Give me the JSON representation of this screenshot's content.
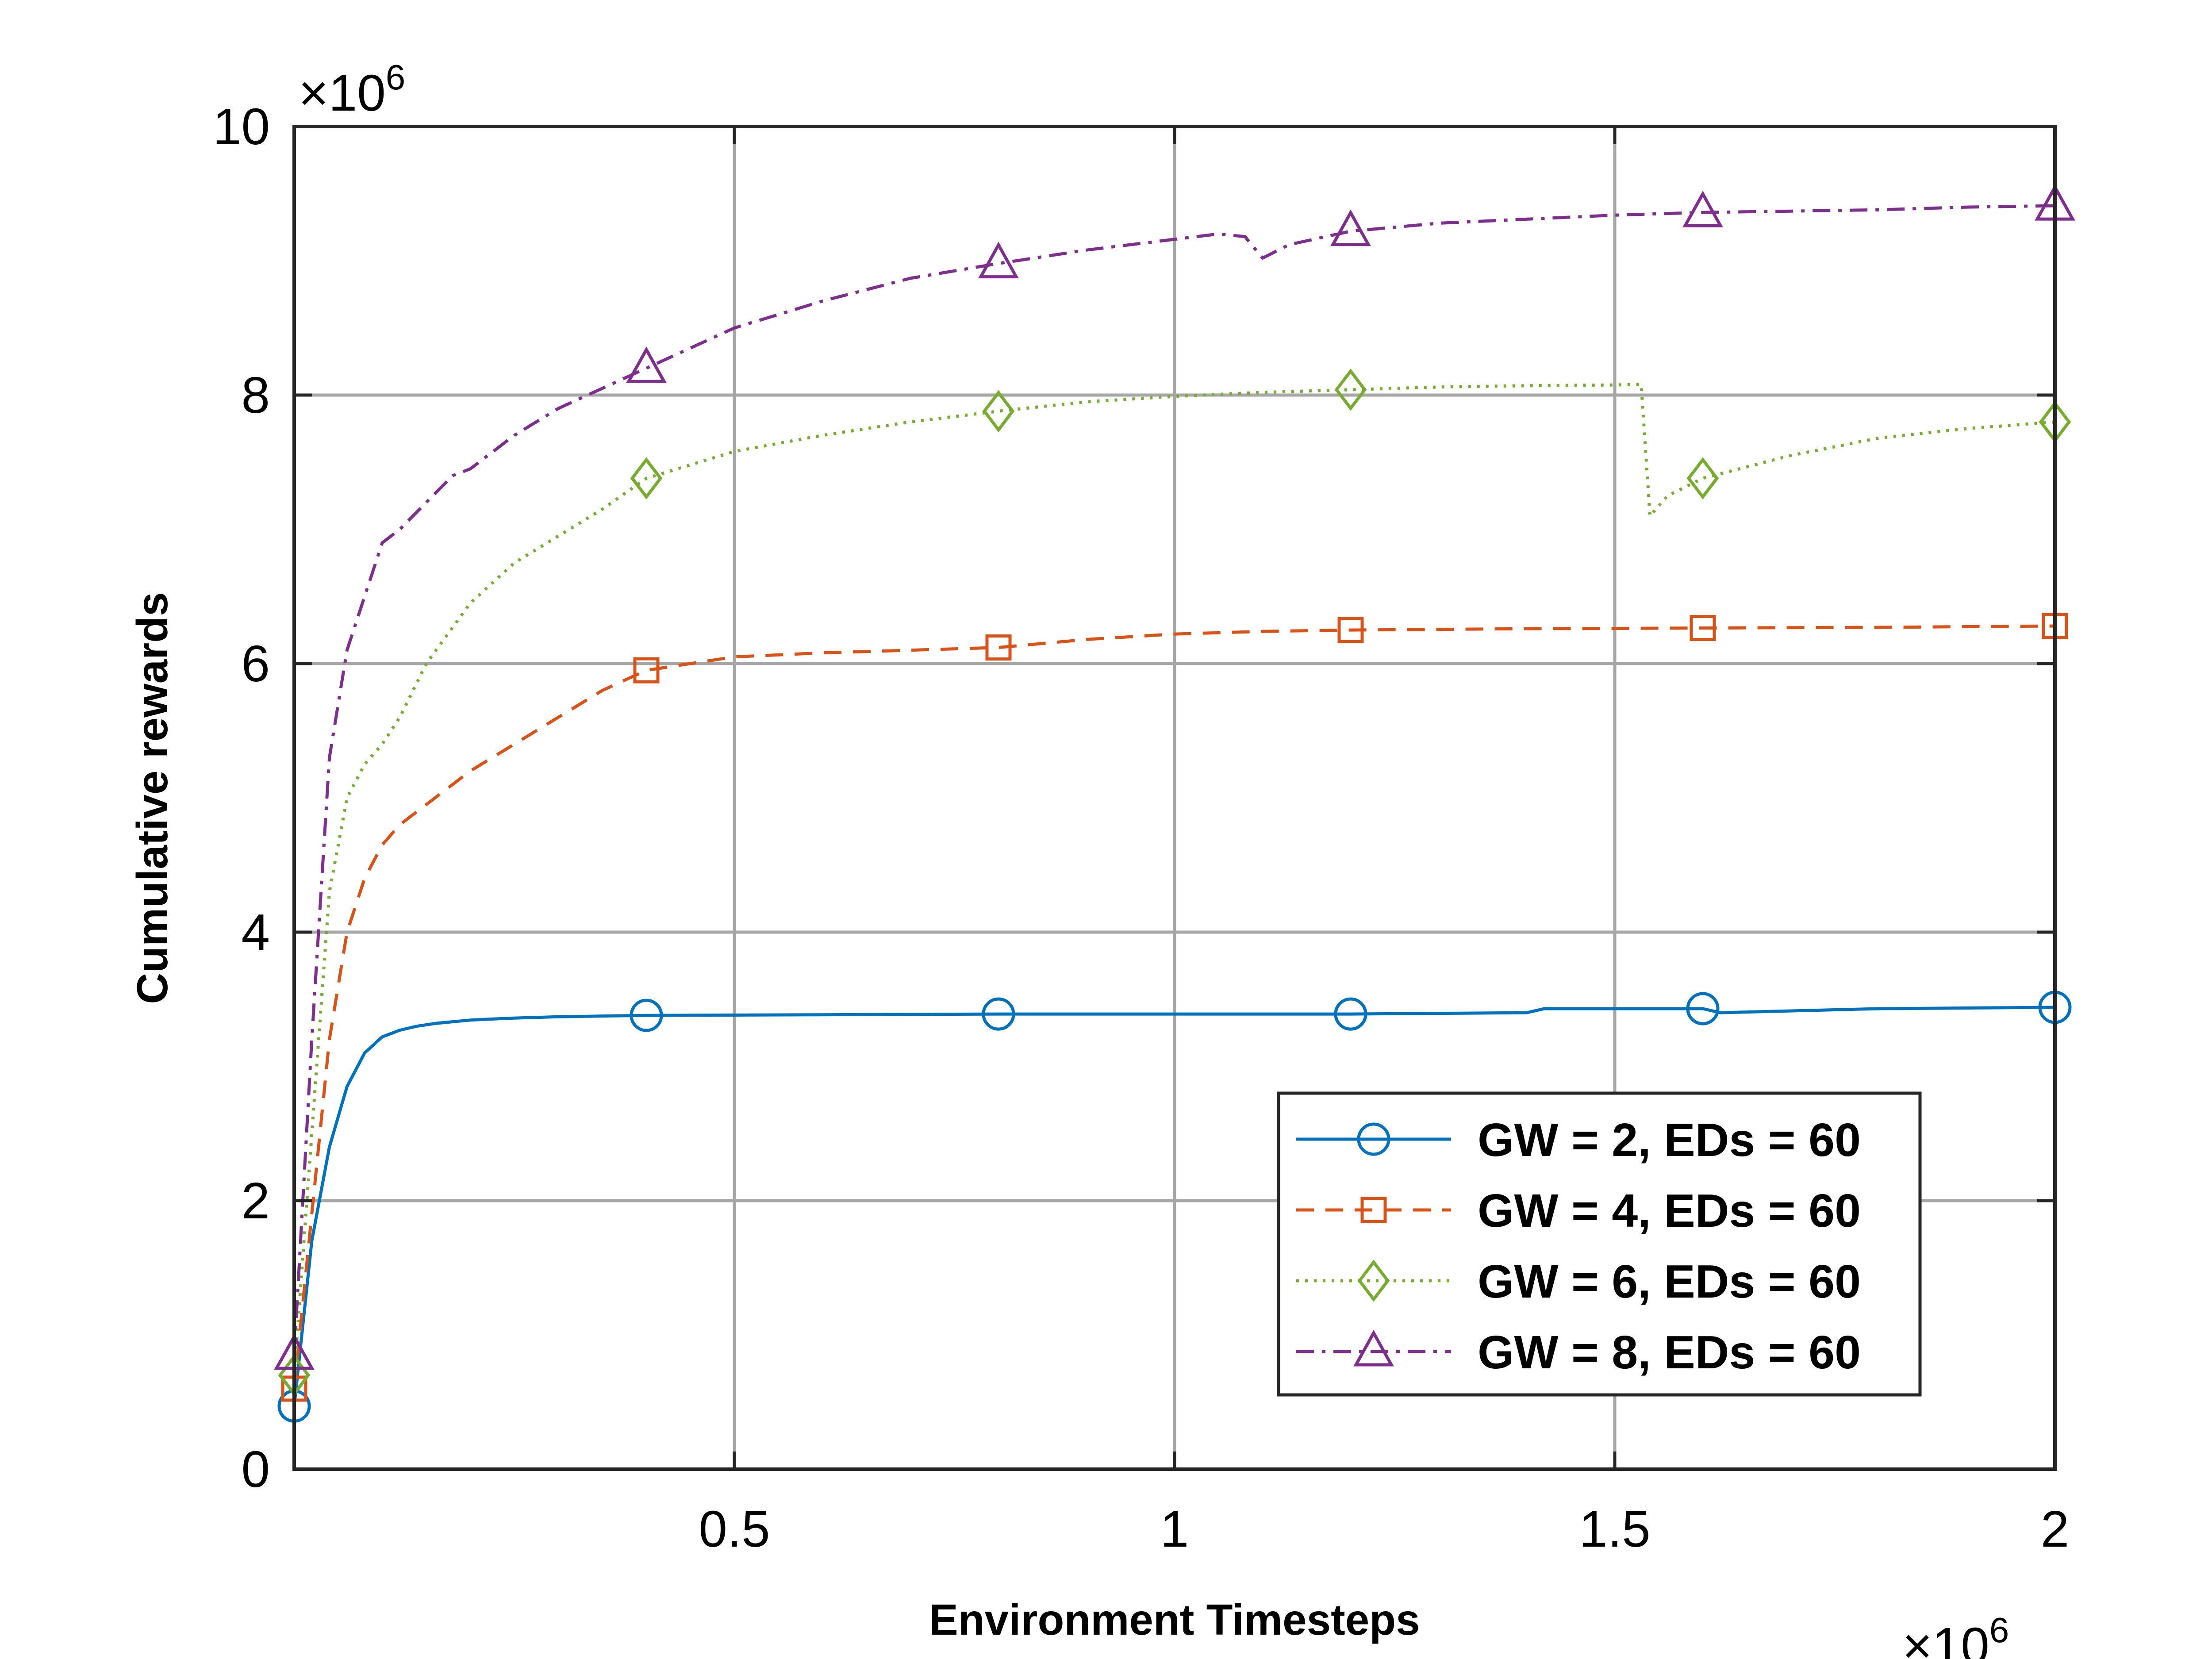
{
  "chart_data": {
    "type": "line",
    "title": "",
    "xlabel": "Environment Timesteps",
    "ylabel": "Cumulative rewards",
    "x_exponent_label": "×10^6",
    "y_exponent_label": "×10^6",
    "xlim": [
      0,
      2000000
    ],
    "ylim": [
      0,
      10000000
    ],
    "x_ticks": [
      500000,
      1000000,
      1500000,
      2000000
    ],
    "x_tick_labels": [
      "0.5",
      "1",
      "1.5",
      "2"
    ],
    "y_ticks": [
      0,
      2000000,
      4000000,
      6000000,
      8000000,
      10000000
    ],
    "y_tick_labels": [
      "0",
      "2",
      "4",
      "6",
      "8",
      "10"
    ],
    "grid": true,
    "legend_position": "bottom-right",
    "series": [
      {
        "name": "GW = 2, EDs = 60",
        "color": "#0072BD",
        "dash": "solid",
        "marker": "circle",
        "x": [
          0,
          20000,
          40000,
          60000,
          80000,
          100000,
          120000,
          140000,
          160000,
          200000,
          250000,
          300000,
          400000,
          600000,
          800000,
          1000000,
          1200000,
          1400000,
          1420000,
          1600000,
          1620000,
          1800000,
          2000000
        ],
        "y": [
          470000,
          1700000,
          2400000,
          2850000,
          3100000,
          3220000,
          3270000,
          3300000,
          3320000,
          3345000,
          3360000,
          3370000,
          3380000,
          3385000,
          3390000,
          3390000,
          3390000,
          3400000,
          3430000,
          3430000,
          3400000,
          3430000,
          3440000
        ]
      },
      {
        "name": "GW = 4, EDs = 60",
        "color": "#D95319",
        "dash": "dashed",
        "marker": "square",
        "x": [
          0,
          20000,
          40000,
          60000,
          80000,
          100000,
          120000,
          150000,
          200000,
          250000,
          300000,
          350000,
          400000,
          450000,
          500000,
          600000,
          700000,
          800000,
          900000,
          1000000,
          1100000,
          1200000,
          1300000,
          1400000,
          1500000,
          1600000,
          1700000,
          1800000,
          1900000,
          2000000
        ],
        "y": [
          600000,
          1900000,
          3200000,
          4000000,
          4400000,
          4650000,
          4800000,
          4950000,
          5200000,
          5400000,
          5600000,
          5800000,
          5950000,
          6000000,
          6050000,
          6080000,
          6100000,
          6120000,
          6180000,
          6220000,
          6240000,
          6250000,
          6255000,
          6260000,
          6262000,
          6265000,
          6268000,
          6270000,
          6275000,
          6280000
        ]
      },
      {
        "name": "GW = 6, EDs = 60",
        "color": "#77AC30",
        "dash": "dotted",
        "marker": "diamond",
        "x": [
          0,
          20000,
          40000,
          60000,
          80000,
          100000,
          120000,
          150000,
          200000,
          250000,
          300000,
          350000,
          400000,
          500000,
          600000,
          700000,
          800000,
          900000,
          1000000,
          1100000,
          1200000,
          1300000,
          1400000,
          1500000,
          1530000,
          1540000,
          1560000,
          1600000,
          1700000,
          1800000,
          1900000,
          2000000
        ],
        "y": [
          700000,
          2500000,
          4300000,
          5000000,
          5250000,
          5400000,
          5600000,
          6000000,
          6450000,
          6750000,
          6950000,
          7150000,
          7380000,
          7580000,
          7700000,
          7800000,
          7880000,
          7950000,
          7990000,
          8020000,
          8040000,
          8060000,
          8070000,
          8075000,
          8080000,
          7100000,
          7250000,
          7380000,
          7550000,
          7680000,
          7750000,
          7800000
        ]
      },
      {
        "name": "GW = 8, EDs = 60",
        "color": "#7E2F8E",
        "dash": "dashdot",
        "marker": "triangle",
        "x": [
          0,
          20000,
          40000,
          60000,
          80000,
          100000,
          120000,
          150000,
          180000,
          200000,
          250000,
          300000,
          350000,
          400000,
          500000,
          600000,
          700000,
          800000,
          900000,
          1000000,
          1050000,
          1080000,
          1100000,
          1130000,
          1200000,
          1300000,
          1400000,
          1500000,
          1600000,
          1700000,
          1800000,
          1900000,
          2000000
        ],
        "y": [
          850000,
          3200000,
          5300000,
          6100000,
          6500000,
          6900000,
          7000000,
          7200000,
          7400000,
          7450000,
          7700000,
          7900000,
          8050000,
          8200000,
          8500000,
          8700000,
          8870000,
          8980000,
          9080000,
          9160000,
          9200000,
          9180000,
          9020000,
          9120000,
          9220000,
          9280000,
          9310000,
          9340000,
          9360000,
          9370000,
          9380000,
          9400000,
          9410000
        ]
      }
    ]
  }
}
